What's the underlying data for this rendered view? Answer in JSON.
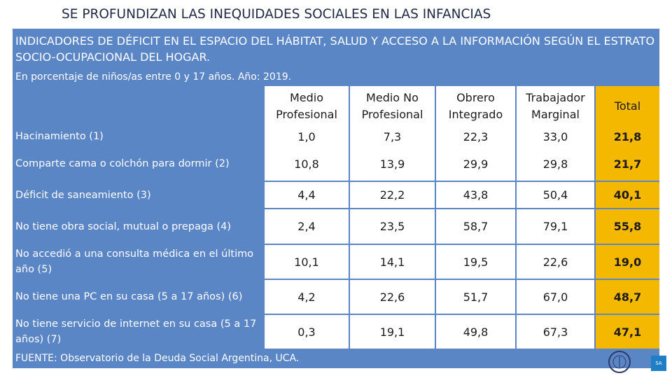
{
  "title": "SE PROFUNDIZAN LAS INEQUIDADES SOCIALES EN LAS INFANCIAS",
  "header": "INDICADORES DE DÉFICIT EN EL ESPACIO DEL HÁBITAT, SALUD Y ACCESO A LA INFORMACIÓN SEGÚN EL ESTRATO SOCIO-OCUPACIONAL DEL HOGAR.",
  "subtitle": "En porcentaje de niños/as entre 0 y 17 años. Año: 2019.",
  "columns": [
    "Medio Profesional",
    "Medio No Profesional",
    "Obrero Integrado",
    "Trabajador Marginal",
    "Total"
  ],
  "rows": [
    {
      "label": "Hacinamiento (1)",
      "values": [
        "1,0",
        "7,3",
        "22,3",
        "33,0"
      ],
      "total": "21,8"
    },
    {
      "label": "Comparte cama o colchón para dormir (2)",
      "values": [
        "10,8",
        "13,9",
        "29,9",
        "29,8"
      ],
      "total": "21,7"
    },
    {
      "label": "Déficit de saneamiento (3)",
      "values": [
        "4,4",
        "22,2",
        "43,8",
        "50,4"
      ],
      "total": "40,1"
    },
    {
      "label": "No tiene obra social, mutual o prepaga (4)",
      "values": [
        "2,4",
        "23,5",
        "58,7",
        "79,1"
      ],
      "total": "55,8"
    },
    {
      "label": "No accedió a una consulta médica en el último año (5)",
      "values": [
        "10,1",
        "14,1",
        "19,5",
        "22,6"
      ],
      "total": "19,0"
    },
    {
      "label": "No tiene una PC en su casa (5 a 17 años) (6)",
      "values": [
        "4,2",
        "22,6",
        "51,7",
        "67,0"
      ],
      "total": "48,7"
    },
    {
      "label": "No tiene servicio de internet en su casa (5 a 17 años) (7)",
      "values": [
        "0,3",
        "19,1",
        "49,8",
        "67,3"
      ],
      "total": "47,1"
    }
  ],
  "source": "FUENTE: Observatorio de la Deuda Social Argentina, UCA.",
  "logo_text": "SA",
  "colors": {
    "panel": "#5b86c5",
    "highlight": "#f5b800",
    "title": "#1f2a44"
  }
}
